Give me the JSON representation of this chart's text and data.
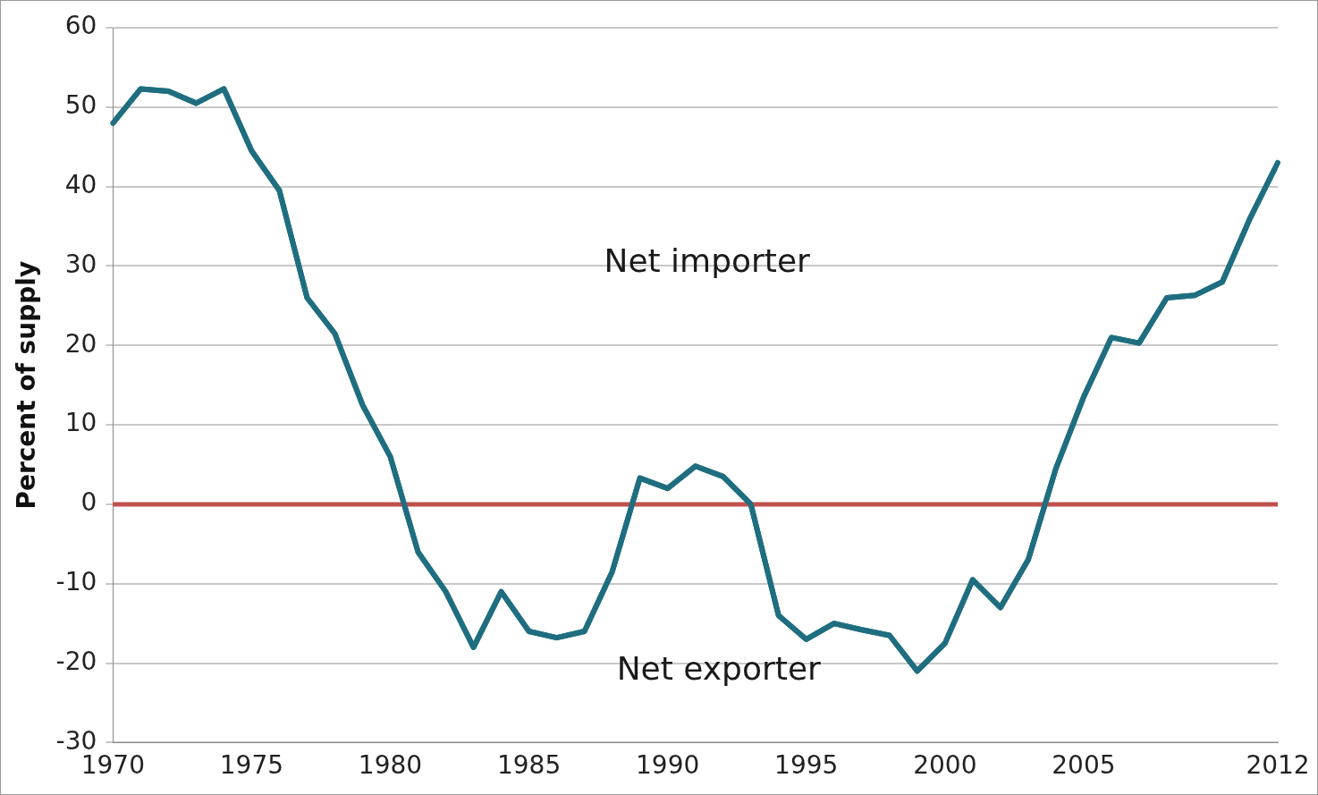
{
  "chart_data": {
    "type": "line",
    "ylabel": "Percent of supply",
    "x": [
      1970,
      1971,
      1972,
      1973,
      1974,
      1975,
      1976,
      1977,
      1978,
      1979,
      1980,
      1981,
      1982,
      1983,
      1984,
      1985,
      1986,
      1987,
      1988,
      1989,
      1990,
      1991,
      1992,
      1993,
      1994,
      1995,
      1996,
      1997,
      1998,
      1999,
      2000,
      2001,
      2002,
      2003,
      2004,
      2005,
      2006,
      2007,
      2008,
      2009,
      2010,
      2011,
      2012
    ],
    "series": [
      {
        "color": "#1f6e80",
        "values": [
          48,
          52.3,
          52,
          50.5,
          52.3,
          44.5,
          39.5,
          26,
          21.5,
          12.5,
          6,
          -6,
          -11,
          -18,
          -11,
          -16,
          -16.8,
          -16,
          -8.5,
          3.3,
          2,
          4.8,
          3.5,
          0,
          -14,
          -17,
          -15,
          -15.8,
          -16.5,
          -21,
          -17.5,
          -9.5,
          -13,
          -7,
          4.5,
          13.5,
          21,
          20.3,
          26,
          26.3,
          28,
          36,
          43
        ]
      }
    ],
    "xlim": [
      1970,
      2012
    ],
    "xticks": [
      1970,
      1975,
      1980,
      1985,
      1990,
      1995,
      2000,
      2005,
      2012
    ],
    "ylim": [
      -30,
      60
    ],
    "yticks": [
      -30,
      -20,
      -10,
      0,
      10,
      20,
      30,
      40,
      50,
      60
    ],
    "grid": "y",
    "legend": false,
    "marker": "none",
    "line_style": "solid",
    "ref_lines": [
      {
        "axis": "y",
        "value": 0,
        "color": "#c0504d"
      }
    ],
    "annotations": [
      "Net importer",
      "Net exporter"
    ]
  }
}
